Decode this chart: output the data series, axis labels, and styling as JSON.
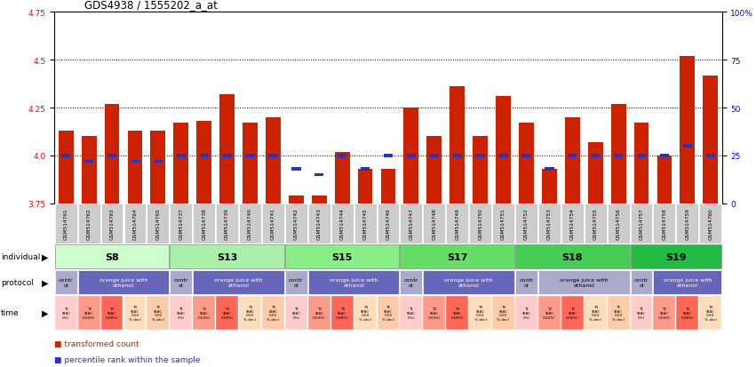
{
  "title": "GDS4938 / 1555202_a_at",
  "samples": [
    "GSM514761",
    "GSM514762",
    "GSM514763",
    "GSM514764",
    "GSM514765",
    "GSM514737",
    "GSM514738",
    "GSM514739",
    "GSM514740",
    "GSM514741",
    "GSM514742",
    "GSM514743",
    "GSM514744",
    "GSM514745",
    "GSM514746",
    "GSM514747",
    "GSM514748",
    "GSM514749",
    "GSM514750",
    "GSM514751",
    "GSM514752",
    "GSM514753",
    "GSM514754",
    "GSM514755",
    "GSM514756",
    "GSM514757",
    "GSM514758",
    "GSM514759",
    "GSM514760"
  ],
  "bar_values": [
    4.13,
    4.1,
    4.27,
    4.13,
    4.13,
    4.17,
    4.18,
    4.32,
    4.17,
    4.2,
    3.79,
    3.79,
    4.02,
    3.93,
    3.93,
    4.25,
    4.1,
    4.36,
    4.1,
    4.31,
    4.17,
    3.93,
    4.2,
    4.07,
    4.27,
    4.17,
    4.0,
    4.52,
    4.42
  ],
  "percentile_pcts": [
    25,
    22,
    25,
    22,
    22,
    25,
    25,
    25,
    25,
    25,
    18,
    15,
    25,
    18,
    25,
    25,
    25,
    25,
    25,
    25,
    25,
    18,
    25,
    25,
    25,
    25,
    25,
    30,
    25
  ],
  "ymin": 3.75,
  "ymax": 4.75,
  "yticks_left": [
    3.75,
    4.0,
    4.25,
    4.5,
    4.75
  ],
  "yticks_right_vals": [
    0,
    25,
    50,
    75,
    100
  ],
  "bar_color": "#cc2200",
  "pct_color": "#2233cc",
  "individual_groups": [
    {
      "label": "S8",
      "start": 0,
      "end": 5,
      "color": "#ccffcc"
    },
    {
      "label": "S13",
      "start": 5,
      "end": 10,
      "color": "#aaf0aa"
    },
    {
      "label": "S15",
      "start": 10,
      "end": 15,
      "color": "#88ee88"
    },
    {
      "label": "S17",
      "start": 15,
      "end": 20,
      "color": "#66dd66"
    },
    {
      "label": "S18",
      "start": 20,
      "end": 25,
      "color": "#44cc55"
    },
    {
      "label": "S19",
      "start": 25,
      "end": 29,
      "color": "#22bb44"
    }
  ],
  "protocol_segments": [
    {
      "start": 0,
      "end": 1,
      "color": "#aaaacc",
      "label": "contr\nol"
    },
    {
      "start": 1,
      "end": 5,
      "color": "#6666bb",
      "label": "orange juice with\nethanol"
    },
    {
      "start": 5,
      "end": 6,
      "color": "#aaaacc",
      "label": "contr\nol"
    },
    {
      "start": 6,
      "end": 10,
      "color": "#6666bb",
      "label": "orange juice with\nethanol"
    },
    {
      "start": 10,
      "end": 11,
      "color": "#aaaacc",
      "label": "contr\nol"
    },
    {
      "start": 11,
      "end": 15,
      "color": "#6666bb",
      "label": "orange juice with\nethanol"
    },
    {
      "start": 15,
      "end": 16,
      "color": "#aaaacc",
      "label": "contr\nol"
    },
    {
      "start": 16,
      "end": 20,
      "color": "#6666bb",
      "label": "orange juice with\nethanol"
    },
    {
      "start": 20,
      "end": 21,
      "color": "#aaaacc",
      "label": "contr\nol"
    },
    {
      "start": 21,
      "end": 25,
      "color": "#aaaacc",
      "label": "orange juice with\nethanol"
    },
    {
      "start": 25,
      "end": 26,
      "color": "#aaaacc",
      "label": "contr\nol"
    },
    {
      "start": 26,
      "end": 29,
      "color": "#6666bb",
      "label": "orange juice with\nethanol"
    }
  ],
  "time_colors": [
    "#ffcccc",
    "#ff9988",
    "#ff6655",
    "#ffddbb",
    "#ffccaa"
  ],
  "time_labels": [
    "T1\n(BAC\n0%)",
    "T2\n(BAC\n0.04%)",
    "T3\n(BAC\n0.08%)",
    "T4\n(BAC\n0.04\n% dec)",
    "T5\n(BAC\n0.02\n% dec)"
  ],
  "legend_items": [
    {
      "color": "#cc2200",
      "label": "transformed count"
    },
    {
      "color": "#2233cc",
      "label": "percentile rank within the sample"
    }
  ]
}
